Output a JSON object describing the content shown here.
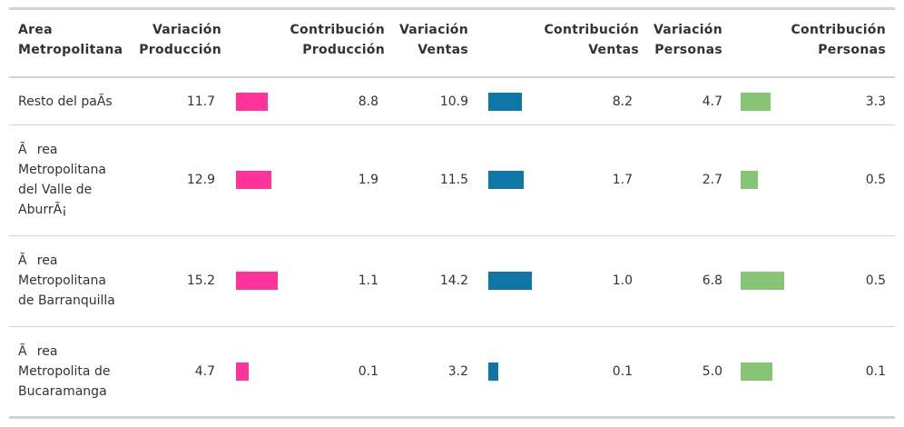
{
  "colors": {
    "produccion": "#ff3399",
    "ventas": "#0e77a8",
    "personas": "#86c573"
  },
  "header": {
    "area": [
      "Area",
      "Metropolitana"
    ],
    "var_prod": [
      "Variación",
      "Producción"
    ],
    "con_prod": [
      "Contribución",
      "Producción"
    ],
    "var_ventas": [
      "Variación",
      "Ventas"
    ],
    "con_ventas": [
      "Contribución",
      "Ventas"
    ],
    "var_pers": [
      "Variación",
      "Personas"
    ],
    "con_pers": [
      "Contribución",
      "Personas"
    ]
  },
  "chart_data": {
    "type": "table",
    "columns": [
      "Area Metropolitana",
      "Variación Producción",
      "Contribución Producción",
      "Variación Ventas",
      "Contribución Ventas",
      "Variación Personas",
      "Contribución Personas"
    ],
    "rows": [
      {
        "area": [
          "Resto del paÃs"
        ],
        "var_prod": 11.7,
        "con_prod": 8.8,
        "var_ventas": 10.9,
        "con_ventas": 8.2,
        "var_pers": 4.7,
        "con_pers": 3.3
      },
      {
        "area": [
          "Ãrea",
          "Metropolitana",
          "del Valle de",
          "AburrÃ¡"
        ],
        "var_prod": 12.9,
        "con_prod": 1.9,
        "var_ventas": 11.5,
        "con_ventas": 1.7,
        "var_pers": 2.7,
        "con_pers": 0.5
      },
      {
        "area": [
          "Ãrea",
          "Metropolitana",
          "de Barranquilla"
        ],
        "var_prod": 15.2,
        "con_prod": 1.1,
        "var_ventas": 14.2,
        "con_ventas": 1.0,
        "var_pers": 6.8,
        "con_pers": 0.5
      },
      {
        "area": [
          "Ãrea",
          "Metropolita de",
          "Bucaramanga"
        ],
        "var_prod": 4.7,
        "con_prod": 0.1,
        "var_ventas": 3.2,
        "con_ventas": 0.1,
        "var_pers": 5.0,
        "con_pers": 0.1
      }
    ]
  }
}
